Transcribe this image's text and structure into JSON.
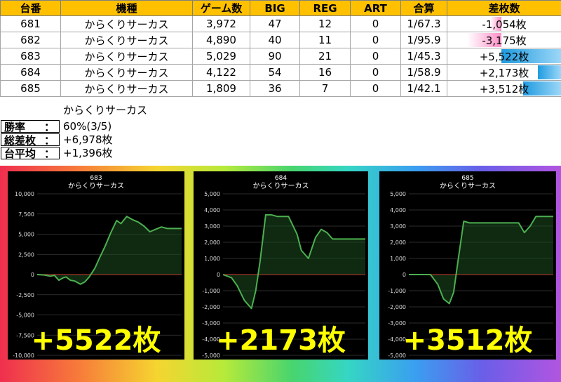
{
  "table": {
    "headers": [
      "台番",
      "機種",
      "ゲーム数",
      "BIG",
      "REG",
      "ART",
      "合算",
      "差枚数"
    ],
    "rows": [
      {
        "no": "681",
        "model": "からくりサーカス",
        "games": "3,972",
        "big": "47",
        "reg": "12",
        "art": "0",
        "combined": "1/67.3",
        "diff": "-1,054枚",
        "diff_value": -1054
      },
      {
        "no": "682",
        "model": "からくりサーカス",
        "games": "4,890",
        "big": "40",
        "reg": "11",
        "art": "0",
        "combined": "1/95.9",
        "diff": "-3,175枚",
        "diff_value": -3175
      },
      {
        "no": "683",
        "model": "からくりサーカス",
        "games": "5,029",
        "big": "90",
        "reg": "21",
        "art": "0",
        "combined": "1/45.3",
        "diff": "+5,522枚",
        "diff_value": 5522
      },
      {
        "no": "684",
        "model": "からくりサーカス",
        "games": "4,122",
        "big": "54",
        "reg": "16",
        "art": "0",
        "combined": "1/58.9",
        "diff": "+2,173枚",
        "diff_value": 2173
      },
      {
        "no": "685",
        "model": "からくりサーカス",
        "games": "1,809",
        "big": "36",
        "reg": "7",
        "art": "0",
        "combined": "1/42.1",
        "diff": "+3,512枚",
        "diff_value": 3512
      }
    ]
  },
  "summary": {
    "title": "からくりサーカス",
    "win_rate_label": "勝率",
    "win_rate_value": "60%(3/5)",
    "total_label": "総差枚",
    "total_value": "+6,978枚",
    "avg_label": "台平均",
    "avg_value": "+1,396枚",
    "colon": "："
  },
  "colors": {
    "header": "#ffc000",
    "negative": "#ff0000",
    "positive": "#0000ff",
    "line": "#4caf50",
    "zero": "#d32f2f",
    "big_text": "#ffff00"
  },
  "chart_data": [
    {
      "type": "area",
      "title": "683",
      "subtitle": "からくりサーカス",
      "ylim": [
        -10000,
        10000
      ],
      "yticks": [
        "10,000",
        "7,500",
        "5,000",
        "2,500",
        "0",
        "-2,500",
        "-5,000",
        "-7,500",
        "-10,000"
      ],
      "x": [
        0,
        0.05,
        0.09,
        0.12,
        0.15,
        0.18,
        0.2,
        0.23,
        0.26,
        0.3,
        0.33,
        0.36,
        0.4,
        0.43,
        0.47,
        0.51,
        0.55,
        0.58,
        0.62,
        0.66,
        0.7,
        0.74,
        0.78,
        0.82,
        0.86,
        0.9,
        0.94,
        1
      ],
      "y": [
        0,
        -50,
        -200,
        -100,
        -700,
        -400,
        -300,
        -700,
        -800,
        -1200,
        -900,
        -300,
        800,
        2000,
        3500,
        5200,
        6700,
        6300,
        7200,
        6800,
        6500,
        6000,
        5300,
        5600,
        5900,
        5700,
        5700,
        5700
      ],
      "label": "+5522枚"
    },
    {
      "type": "area",
      "title": "684",
      "subtitle": "からくりサーカス",
      "ylim": [
        -5000,
        5000
      ],
      "yticks": [
        "5,000",
        "4,000",
        "3,000",
        "2,000",
        "1,000",
        "0",
        "-1,000",
        "-2,000",
        "-3,000",
        "-4,000",
        "-5,000"
      ],
      "x": [
        0,
        0.06,
        0.1,
        0.15,
        0.2,
        0.23,
        0.26,
        0.3,
        0.34,
        0.38,
        0.42,
        0.46,
        0.52,
        0.55,
        0.6,
        0.65,
        0.69,
        0.73,
        0.77,
        0.81,
        0.85,
        0.9,
        0.95,
        1
      ],
      "y": [
        0,
        -200,
        -700,
        -1600,
        -2100,
        -1000,
        800,
        3700,
        3700,
        3600,
        3600,
        3600,
        2500,
        1500,
        1000,
        2300,
        2800,
        2600,
        2200,
        2200,
        2200,
        2200,
        2200,
        2200
      ],
      "label": "+2173枚"
    },
    {
      "type": "area",
      "title": "685",
      "subtitle": "からくりサーカス",
      "ylim": [
        -5000,
        5000
      ],
      "yticks": [
        "5,000",
        "4,000",
        "3,000",
        "2,000",
        "1,000",
        "0",
        "-1,000",
        "-2,000",
        "-3,000",
        "-4,000",
        "-5,000"
      ],
      "x": [
        0,
        0.08,
        0.15,
        0.2,
        0.24,
        0.28,
        0.31,
        0.34,
        0.38,
        0.42,
        0.5,
        0.6,
        0.7,
        0.76,
        0.8,
        0.84,
        0.88,
        0.92,
        1
      ],
      "y": [
        0,
        0,
        0,
        -600,
        -1500,
        -1800,
        -1100,
        800,
        3300,
        3200,
        3200,
        3200,
        3200,
        3200,
        2600,
        3000,
        3600,
        3600,
        3600
      ],
      "label": "+3512枚"
    }
  ]
}
